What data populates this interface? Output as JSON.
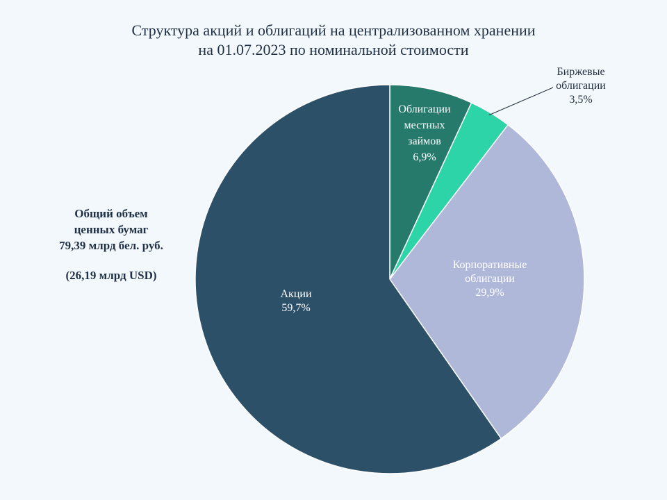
{
  "title_lines": [
    "Структура акций и облигаций на централизованном хранении",
    "на 01.07.2023 по номинальной стоимости"
  ],
  "side_note": {
    "line1": "Общий объем",
    "line2": "ценных бумаг",
    "line3": "79,39  млрд бел. руб.",
    "line4": "(26,19  млрд USD)"
  },
  "chart_data": {
    "type": "pie",
    "title": "Структура акций и облигаций на централизованном хранении на 01.07.2023 по номинальной стоимости",
    "slices": [
      {
        "label_lines": [
          "Облигации",
          "местных",
          "займов"
        ],
        "pct_label": "6,9%",
        "value": 6.9,
        "color": "#267a6c",
        "text_color": "#ffffff"
      },
      {
        "label_lines": [
          "Биржевые",
          "облигации"
        ],
        "pct_label": "3,5%",
        "value": 3.5,
        "color": "#2dd4a8",
        "text_color": "#1f2d3d"
      },
      {
        "label_lines": [
          "Корпоративные",
          "облигации"
        ],
        "pct_label": "29,9%",
        "value": 29.9,
        "color": "#b0b8da",
        "text_color": "#ffffff"
      },
      {
        "label_lines": [
          "Акции"
        ],
        "pct_label": "59,7%",
        "value": 59.7,
        "color": "#2d5069",
        "text_color": "#ffffff"
      }
    ],
    "start": "12 o'clock",
    "direction": "clockwise",
    "legend": "none"
  }
}
